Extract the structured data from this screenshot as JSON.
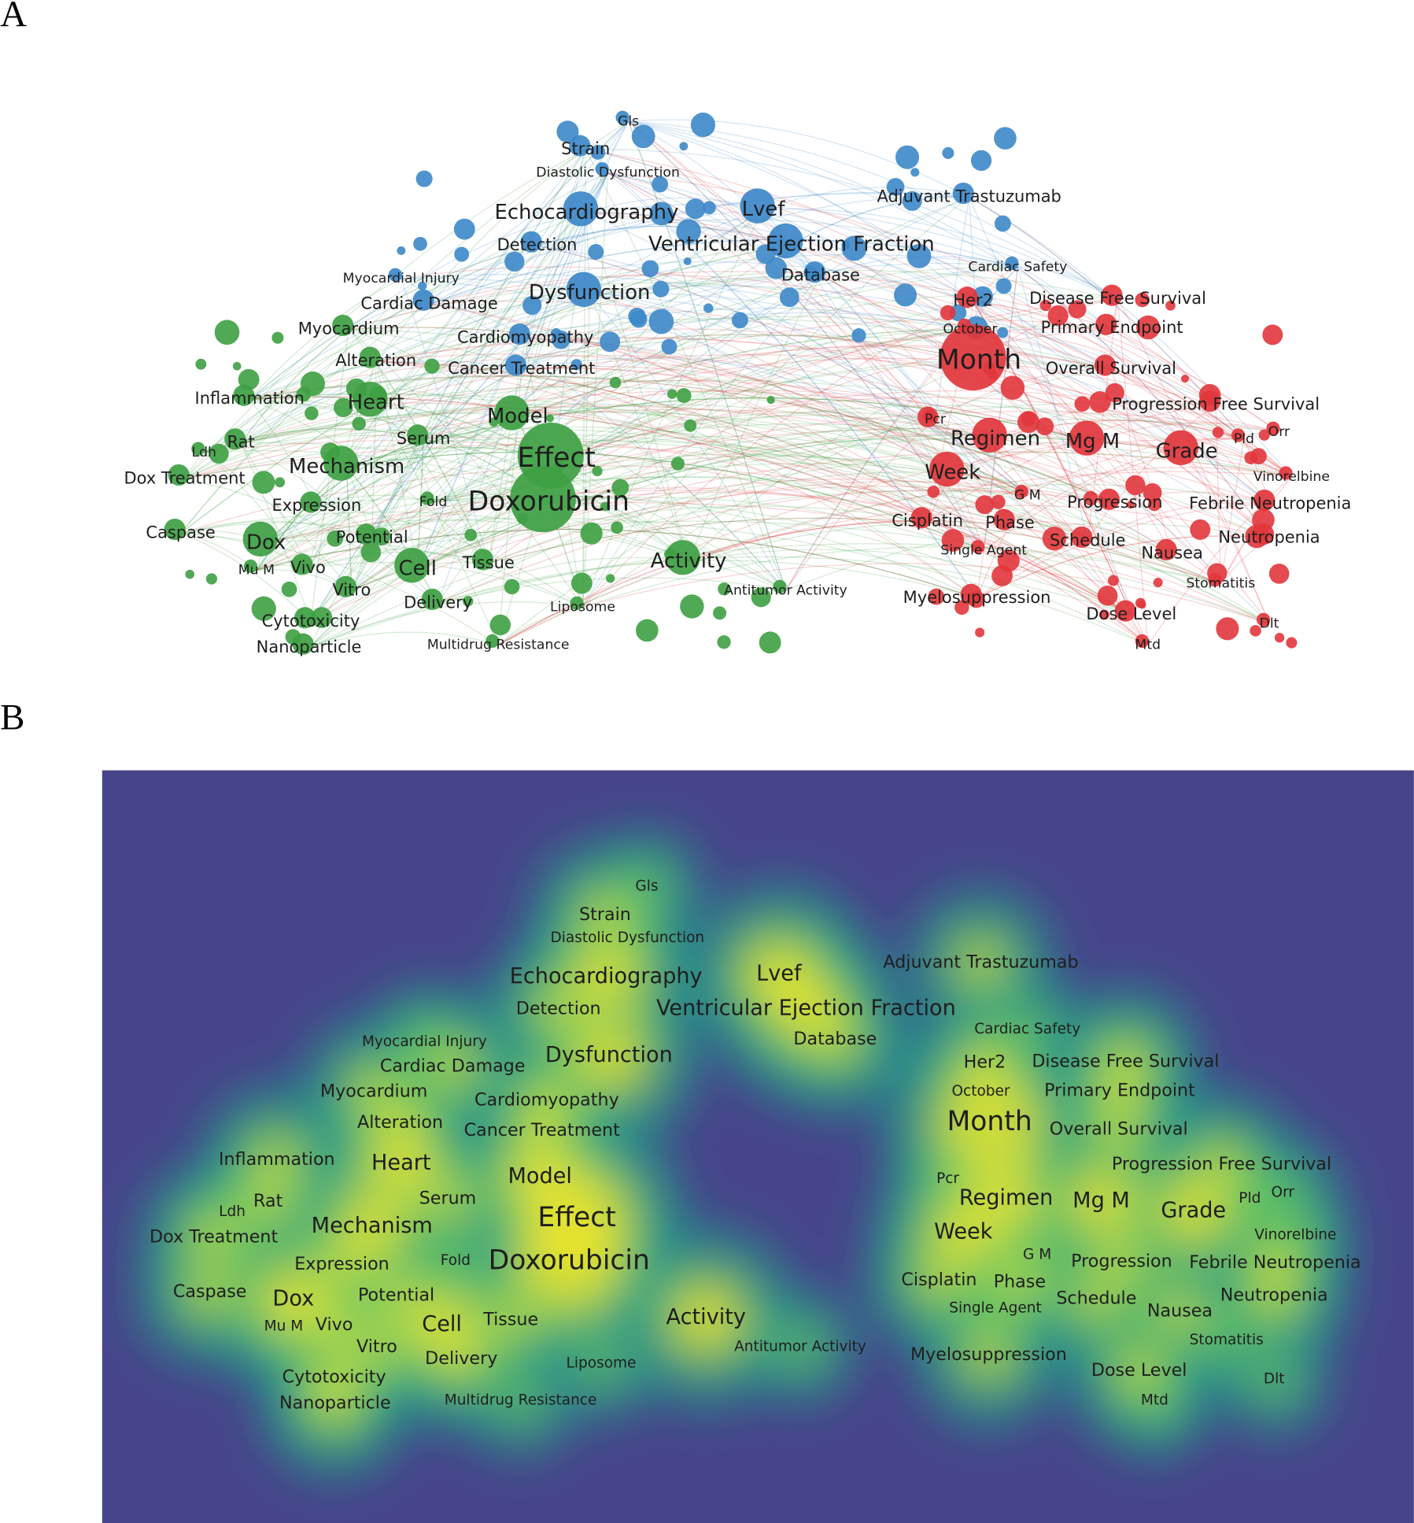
{
  "panels": [
    {
      "label": "A"
    },
    {
      "label": "B"
    }
  ],
  "clusters": [
    {
      "color": "#3d88c9",
      "terms": [
        "Gls",
        "Strain",
        "Diastolic Dysfunction",
        "Echocardiography",
        "Lvef",
        "Adjuvant Trastuzumab",
        "Detection",
        "Ventricular Ejection Fraction",
        "Cardiac Safety",
        "Database",
        "Myocardial Injury",
        "Dysfunction",
        "Cardiac Damage",
        "Cardiomyopathy",
        "Cancer Treatment"
      ]
    },
    {
      "color": "#e1363c",
      "terms": [
        "Her2",
        "Disease Free Survival",
        "October",
        "Primary Endpoint",
        "Month",
        "Overall Survival",
        "Progression Free Survival",
        "Pcr",
        "Regimen",
        "Mg M",
        "Grade",
        "Pld",
        "Orr",
        "Week",
        "Vinorelbine",
        "G M",
        "Progression",
        "Febrile Neutropenia",
        "Cisplatin",
        "Phase",
        "Schedule",
        "Neutropenia",
        "Single Agent",
        "Nausea",
        "Stomatitis",
        "Myelosuppression",
        "Dose Level",
        "Dlt",
        "Mtd"
      ]
    },
    {
      "color": "#3ea043",
      "terms": [
        "Myocardium",
        "Alteration",
        "Inflammation",
        "Heart",
        "Model",
        "Serum",
        "Rat",
        "Effect",
        "Ldh",
        "Mechanism",
        "Dox Treatment",
        "Fold",
        "Doxorubicin",
        "Expression",
        "Caspase",
        "Dox",
        "Potential",
        "Cell",
        "Tissue",
        "Activity",
        "Mu M",
        "Vivo",
        "Vitro",
        "Antitumor Activity",
        "Delivery",
        "Liposome",
        "Cytotoxicity",
        "Multidrug Resistance",
        "Nanoparticle"
      ]
    }
  ]
}
